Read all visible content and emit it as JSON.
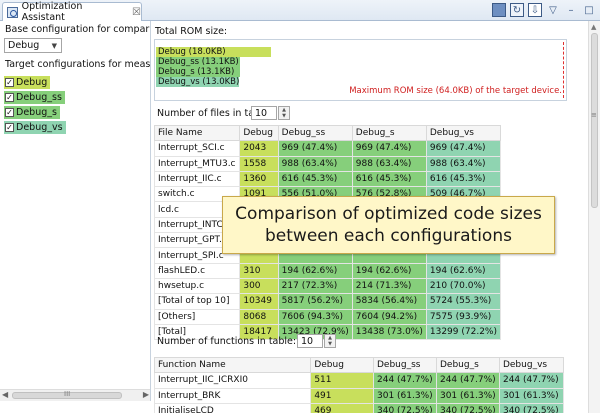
{
  "tab": {
    "title": "Optimization Assistant",
    "close": "☒"
  },
  "left": {
    "base_label": "Base configuration for comparison:",
    "base_value": "Debug",
    "target_label": "Target configurations for measurement",
    "configs": [
      {
        "label": "Debug",
        "color": "#c8df5c"
      },
      {
        "label": "Debug_ss",
        "color": "#86cf7b"
      },
      {
        "label": "Debug_s",
        "color": "#86cf7b"
      },
      {
        "label": "Debug_vs",
        "color": "#8fd4b1"
      }
    ]
  },
  "rom": {
    "title": "Total ROM size:",
    "bars": [
      {
        "label": "Debug (18.0KB)",
        "kb": 18.0,
        "color": "#c8df5c"
      },
      {
        "label": "Debug_ss (13.1KB)",
        "kb": 13.1,
        "color": "#86cf7b"
      },
      {
        "label": "Debug_s (13.1KB)",
        "kb": 13.1,
        "color": "#86cf7b"
      },
      {
        "label": "Debug_vs (13.0KB)",
        "kb": 13.0,
        "color": "#8fd4b1"
      }
    ],
    "max_label": "Maximum ROM size (64.0KB) of the target device.",
    "max_kb": 64.0
  },
  "files": {
    "count_label": "Number of files in table:",
    "count": "10",
    "headers": [
      "File Name",
      "Debug",
      "Debug_ss",
      "Debug_s",
      "Debug_vs"
    ],
    "rows": [
      [
        "Interrupt_SCI.c",
        "2043",
        "969 (47.4%)",
        "969 (47.4%)",
        "969 (47.4%)"
      ],
      [
        "Interrupt_MTU3.c",
        "1558",
        "988 (63.4%)",
        "988 (63.4%)",
        "988 (63.4%)"
      ],
      [
        "Interrupt_IIC.c",
        "1360",
        "616 (45.3%)",
        "616 (45.3%)",
        "616 (45.3%)"
      ],
      [
        "switch.c",
        "1091",
        "556 (51.0%)",
        "576 (52.8%)",
        "509 (46.7%)"
      ],
      [
        "lcd.c",
        "1062",
        "733 (69.0%)",
        "733 (69.0%)",
        "604 (56.9%)"
      ],
      [
        "Interrupt_INTC.c",
        "",
        "",
        "",
        ""
      ],
      [
        "Interrupt_GPT.c",
        "",
        "",
        "",
        ""
      ],
      [
        "Interrupt_SPI.c",
        "",
        "",
        "",
        ""
      ],
      [
        "flashLED.c",
        "310",
        "194 (62.6%)",
        "194 (62.6%)",
        "194 (62.6%)"
      ],
      [
        "hwsetup.c",
        "300",
        "217 (72.3%)",
        "214 (71.3%)",
        "210 (70.0%)"
      ],
      [
        "[Total of top 10]",
        "10349",
        "5817 (56.2%)",
        "5834 (56.4%)",
        "5724 (55.3%)"
      ],
      [
        "[Others]",
        "8068",
        "7606 (94.3%)",
        "7604 (94.2%)",
        "7575 (93.9%)"
      ],
      [
        "[Total]",
        "18417",
        "13423 (72.9%)",
        "13438 (73.0%)",
        "13299 (72.2%)"
      ]
    ]
  },
  "functions": {
    "count_label": "Number of functions in table:",
    "count": "10",
    "headers": [
      "Function Name",
      "Debug",
      "Debug_ss",
      "Debug_s",
      "Debug_vs"
    ],
    "rows": [
      [
        "Interrupt_IIC_ICRXI0",
        "511",
        "244 (47.7%)",
        "244 (47.7%)",
        "244 (47.7%)"
      ],
      [
        "Interrupt_BRK",
        "491",
        "301 (61.3%)",
        "301 (61.3%)",
        "301 (61.3%)"
      ],
      [
        "InitialiseLCD",
        "469",
        "340 (72.5%)",
        "340 (72.5%)",
        "340 (72.5%)"
      ]
    ]
  },
  "callout": {
    "line1": "Comparison of optimized code sizes",
    "line2": "between each configurations"
  }
}
